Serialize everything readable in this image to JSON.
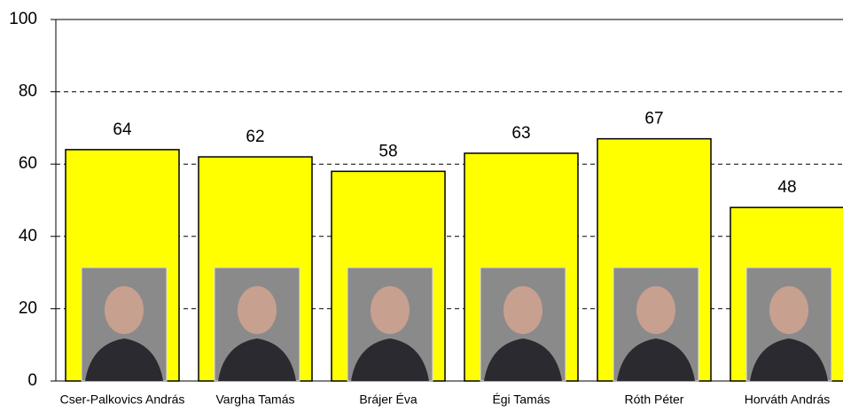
{
  "chart_data": {
    "type": "bar",
    "categories": [
      "Cser-Palkovics András",
      "Vargha Tamás",
      "Brájer Éva",
      "Égi Tamás",
      "Róth Péter",
      "Horváth András"
    ],
    "values": [
      64,
      62,
      58,
      63,
      67,
      48
    ],
    "color": "#ffff00",
    "ylim": [
      0,
      100
    ],
    "yticks": [
      0,
      20,
      40,
      60,
      80,
      100
    ],
    "grid": true
  }
}
